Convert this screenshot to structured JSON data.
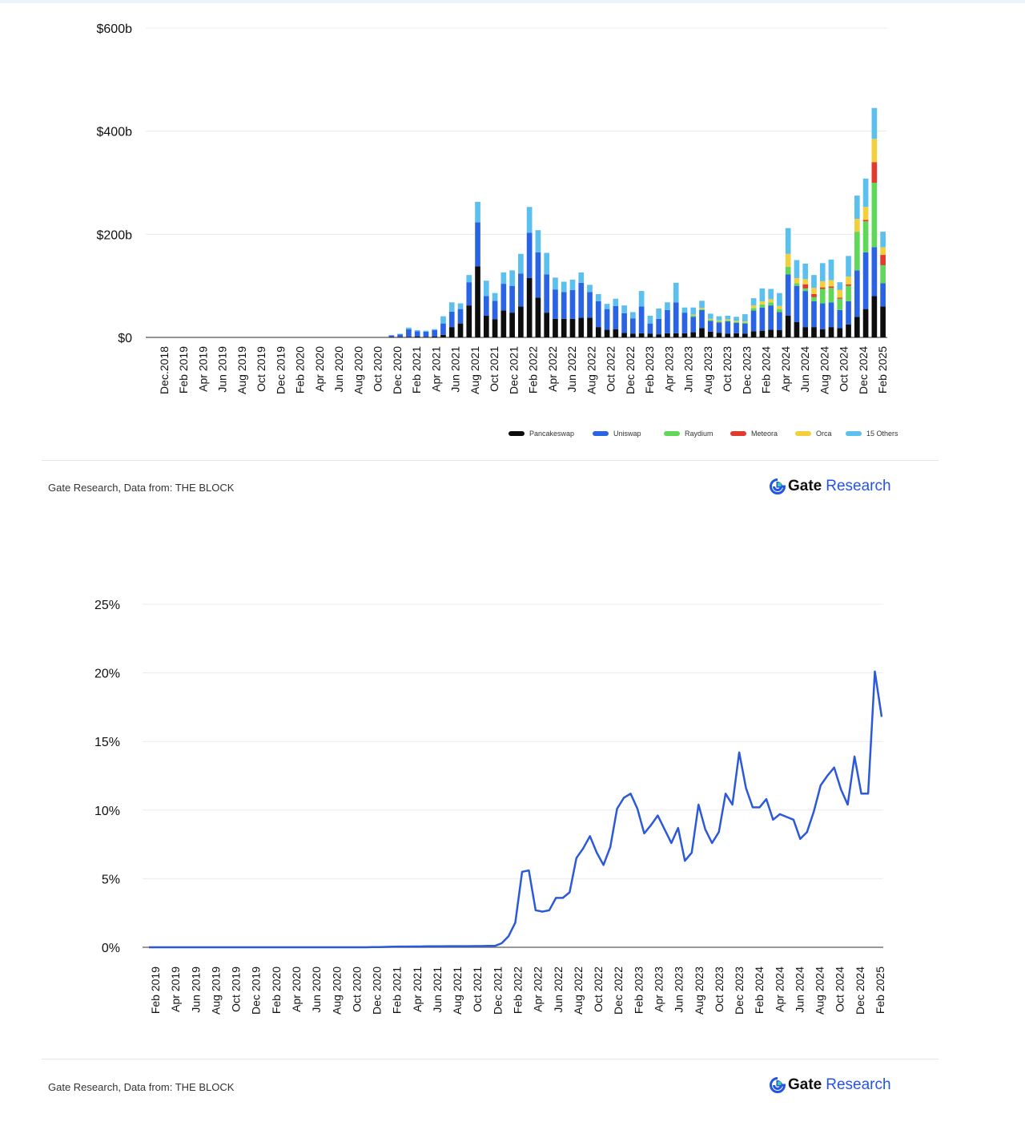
{
  "charts": [
    {
      "source": "Gate Research, Data from: THE BLOCK",
      "brand": {
        "gate": "Gate",
        "research": "Research"
      }
    },
    {
      "source": "Gate Research, Data from: THE BLOCK",
      "brand": {
        "gate": "Gate",
        "research": "Research"
      }
    }
  ],
  "colors": {
    "Pancakeswap": "#0d0d0d",
    "Uniswap": "#2a63e3",
    "Raydium": "#5fd85a",
    "Meteora": "#e23a2e",
    "Orca": "#f4cf3c",
    "15 Others": "#5bc0ee",
    "line": "#2b59d9"
  },
  "chart_data": [
    {
      "type": "bar",
      "stacked": true,
      "y_tick_labels": [
        "$0",
        "$200b",
        "$400b",
        "$600b"
      ],
      "y_ticks": [
        0,
        200,
        400,
        600
      ],
      "ylim": [
        0,
        600
      ],
      "unit": "$b",
      "x_tick_labels": [
        "Dec.2018",
        "Feb 2019",
        "Apr 2019",
        "Jun 2019",
        "Aug 2019",
        "Oct 2019",
        "Dec 2019",
        "Feb 2020",
        "Apr 2020",
        "Jun 2020",
        "Aug 2020",
        "Oct 2020",
        "Dec 2020",
        "Feb 2021",
        "Apr 2021",
        "Jun 2021",
        "Aug 2021",
        "Oct 2021",
        "Dec 2021",
        "Feb 2022",
        "Apr 2022",
        "Jun 2022",
        "Aug 2022",
        "Oct 2022",
        "Dec 2022",
        "Feb 2023",
        "Apr 2023",
        "Jun 2023",
        "Aug 2023",
        "Oct 2023",
        "Dec 2023",
        "Feb 2024",
        "Apr 2024",
        "Jun 2024",
        "Aug 2024",
        "Oct 2024",
        "Dec 2024",
        "Feb 2025"
      ],
      "legend_position": "bottom-right",
      "legend": [
        "Pancakeswap",
        "Uniswap",
        "Raydium",
        "Meteora",
        "Orca",
        "15 Others"
      ],
      "series": [
        {
          "name": "Pancakeswap",
          "values": [
            0,
            0,
            0,
            0,
            0,
            0,
            0,
            0,
            0,
            0,
            0,
            0,
            0,
            0,
            0,
            0,
            0,
            0,
            0,
            0,
            0,
            0,
            0,
            0,
            0,
            0,
            0,
            0,
            1,
            1,
            1,
            2,
            1,
            2,
            5,
            20,
            27,
            62,
            138,
            42,
            35,
            52,
            48,
            60,
            115,
            77,
            48,
            36,
            36,
            36,
            38,
            38,
            20,
            15,
            16,
            9,
            7,
            8,
            7,
            6,
            8,
            8,
            8,
            10,
            18,
            11,
            9,
            7,
            8,
            7,
            12,
            13,
            15,
            14,
            42,
            30,
            20,
            20,
            16,
            20,
            18,
            25,
            40,
            55,
            80,
            60
          ]
        },
        {
          "name": "Uniswap",
          "values": [
            0,
            0,
            0,
            0,
            0,
            0,
            0,
            0,
            0,
            0,
            0,
            0,
            0,
            0,
            0,
            0,
            0,
            0,
            0,
            0,
            0,
            0,
            0,
            0,
            0,
            0,
            0,
            0,
            3,
            5,
            15,
            10,
            10,
            12,
            22,
            30,
            28,
            45,
            85,
            38,
            36,
            52,
            52,
            64,
            88,
            88,
            74,
            57,
            52,
            56,
            68,
            50,
            50,
            40,
            45,
            38,
            30,
            52,
            20,
            30,
            45,
            60,
            40,
            30,
            35,
            21,
            20,
            24,
            20,
            20,
            40,
            45,
            47,
            35,
            80,
            70,
            70,
            50,
            50,
            48,
            35,
            45,
            90,
            110,
            95,
            45
          ]
        },
        {
          "name": "Raydium",
          "values": [
            0,
            0,
            0,
            0,
            0,
            0,
            0,
            0,
            0,
            0,
            0,
            0,
            0,
            0,
            0,
            0,
            0,
            0,
            0,
            0,
            0,
            0,
            0,
            0,
            0,
            0,
            0,
            0,
            0,
            0,
            0,
            0,
            0,
            0,
            0,
            0,
            0,
            0,
            0,
            0,
            0,
            0,
            0,
            0,
            0,
            0,
            0,
            0,
            0,
            0,
            0,
            0,
            0,
            0,
            0,
            0,
            0,
            0,
            0,
            0,
            0,
            0,
            0,
            2,
            2,
            2,
            2,
            2,
            2,
            2,
            5,
            6,
            6,
            6,
            15,
            5,
            5,
            8,
            28,
            28,
            22,
            30,
            75,
            60,
            125,
            35
          ]
        },
        {
          "name": "Meteora",
          "values": [
            0,
            0,
            0,
            0,
            0,
            0,
            0,
            0,
            0,
            0,
            0,
            0,
            0,
            0,
            0,
            0,
            0,
            0,
            0,
            0,
            0,
            0,
            0,
            0,
            0,
            0,
            0,
            0,
            0,
            0,
            0,
            0,
            0,
            0,
            0,
            0,
            0,
            0,
            0,
            0,
            0,
            0,
            0,
            0,
            0,
            0,
            0,
            0,
            0,
            0,
            0,
            0,
            0,
            0,
            0,
            0,
            0,
            0,
            0,
            0,
            0,
            0,
            0,
            0,
            0,
            0,
            0,
            0,
            0,
            0,
            0,
            0,
            0,
            0,
            0,
            0,
            8,
            6,
            3,
            3,
            2,
            3,
            0,
            3,
            40,
            20
          ]
        },
        {
          "name": "Orca",
          "values": [
            0,
            0,
            0,
            0,
            0,
            0,
            0,
            0,
            0,
            0,
            0,
            0,
            0,
            0,
            0,
            0,
            0,
            0,
            0,
            0,
            0,
            0,
            0,
            0,
            0,
            0,
            0,
            0,
            0,
            0,
            0,
            0,
            0,
            0,
            0,
            0,
            0,
            0,
            0,
            0,
            0,
            0,
            0,
            0,
            0,
            0,
            0,
            0,
            0,
            0,
            0,
            0,
            0,
            0,
            0,
            0,
            0,
            0,
            0,
            0,
            0,
            0,
            0,
            2,
            2,
            2,
            2,
            2,
            2,
            2,
            5,
            6,
            6,
            6,
            25,
            10,
            10,
            12,
            12,
            12,
            15,
            15,
            25,
            25,
            45,
            15
          ]
        },
        {
          "name": "15 Others",
          "values": [
            0,
            0,
            0,
            0,
            0,
            0,
            0,
            0,
            0,
            0,
            0,
            0,
            0,
            0,
            0,
            0,
            0,
            0,
            0,
            0,
            0,
            0,
            0,
            0,
            0,
            0,
            0,
            0,
            0,
            1,
            3,
            2,
            2,
            2,
            14,
            18,
            11,
            14,
            40,
            30,
            15,
            22,
            30,
            38,
            50,
            43,
            42,
            23,
            20,
            20,
            20,
            14,
            14,
            10,
            14,
            15,
            12,
            30,
            15,
            20,
            15,
            38,
            10,
            14,
            14,
            10,
            8,
            7,
            8,
            14,
            14,
            25,
            20,
            25,
            50,
            35,
            30,
            25,
            35,
            40,
            15,
            40,
            45,
            55,
            60,
            30
          ]
        }
      ]
    },
    {
      "type": "line",
      "y_tick_labels": [
        "0%",
        "5%",
        "10%",
        "15%",
        "20%",
        "25%"
      ],
      "y_ticks": [
        0,
        5,
        10,
        15,
        20,
        25
      ],
      "ylim": [
        0,
        25
      ],
      "unit": "%",
      "x_tick_labels": [
        "Feb 2019",
        "Apr 2019",
        "Jun 2019",
        "Aug 2019",
        "Oct 2019",
        "Dec 2019",
        "Feb 2020",
        "Apr 2020",
        "Jun 2020",
        "Aug 2020",
        "Oct 2020",
        "Dec 2020",
        "Feb 2021",
        "Apr 2021",
        "Jun 2021",
        "Aug 2021",
        "Oct 2021",
        "Dec 2021",
        "Feb 2022",
        "Apr 2022",
        "Jun 2022",
        "Aug 2022",
        "Oct 2022",
        "Dec 2022",
        "Feb 2023",
        "Apr 2023",
        "Jun 2023",
        "Aug 2023",
        "Oct 2023",
        "Dec 2023",
        "Feb 2024",
        "Apr 2024",
        "Jun 2024",
        "Aug 2024",
        "Oct 2024",
        "Dec 2024",
        "Feb 2025"
      ],
      "series": [
        {
          "values": [
            0,
            0,
            0,
            0,
            0,
            0,
            0,
            0,
            0,
            0,
            0,
            0,
            0,
            0,
            0,
            0,
            0,
            0,
            0,
            0,
            0,
            0,
            0,
            0,
            0,
            0,
            0,
            0,
            0,
            0,
            0,
            0,
            0,
            0.01,
            0.02,
            0.03,
            0.04,
            0.05,
            0.05,
            0.06,
            0.06,
            0.07,
            0.07,
            0.07,
            0.08,
            0.08,
            0.08,
            0.08,
            0.09,
            0.09,
            0.1,
            0.1,
            0.3,
            0.8,
            1.8,
            5.5,
            5.6,
            2.7,
            2.6,
            2.7,
            3.6,
            3.6,
            4.0,
            6.5,
            7.2,
            8.1,
            6.9,
            6.0,
            7.3,
            10.1,
            10.9,
            11.2,
            10.1,
            8.3,
            8.9,
            9.6,
            8.6,
            7.6,
            8.7,
            6.3,
            6.9,
            10.4,
            8.6,
            7.6,
            8.4,
            11.2,
            10.4,
            14.2,
            11.6,
            10.2,
            10.2,
            10.8,
            9.3,
            9.7,
            9.5,
            9.3,
            7.9,
            8.4,
            9.9,
            11.8,
            12.5,
            13.1,
            11.5,
            10.4,
            13.9,
            11.2,
            11.2,
            20.1,
            16.8
          ]
        }
      ]
    }
  ]
}
